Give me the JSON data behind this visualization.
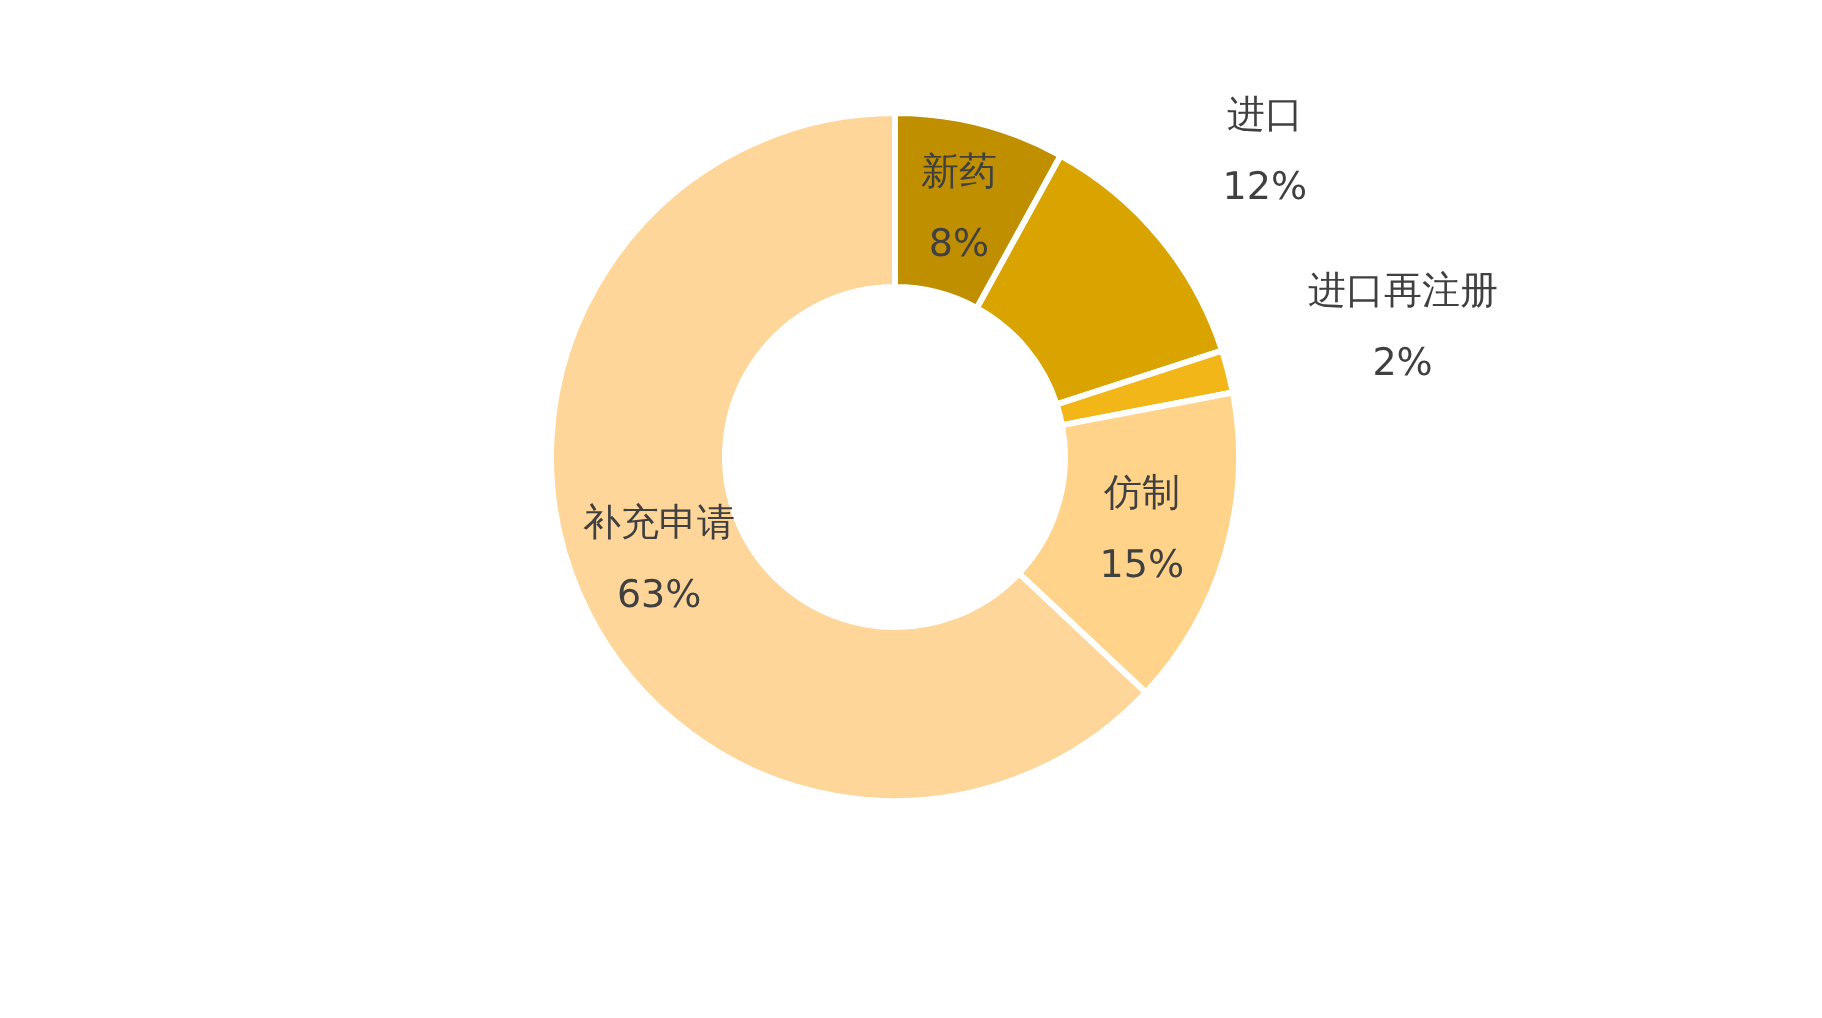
{
  "chart_data": {
    "type": "donut",
    "categories": [
      "新药",
      "进口",
      "进口再注册",
      "仿制",
      "补充申请"
    ],
    "values": [
      8,
      12,
      2,
      15,
      63
    ],
    "colors": [
      "#bf8f00",
      "#d9a300",
      "#f2b618",
      "#ffd48a",
      "#ffd699"
    ],
    "value_labels": [
      "8%",
      "12%",
      "2%",
      "15%",
      "63%"
    ]
  }
}
